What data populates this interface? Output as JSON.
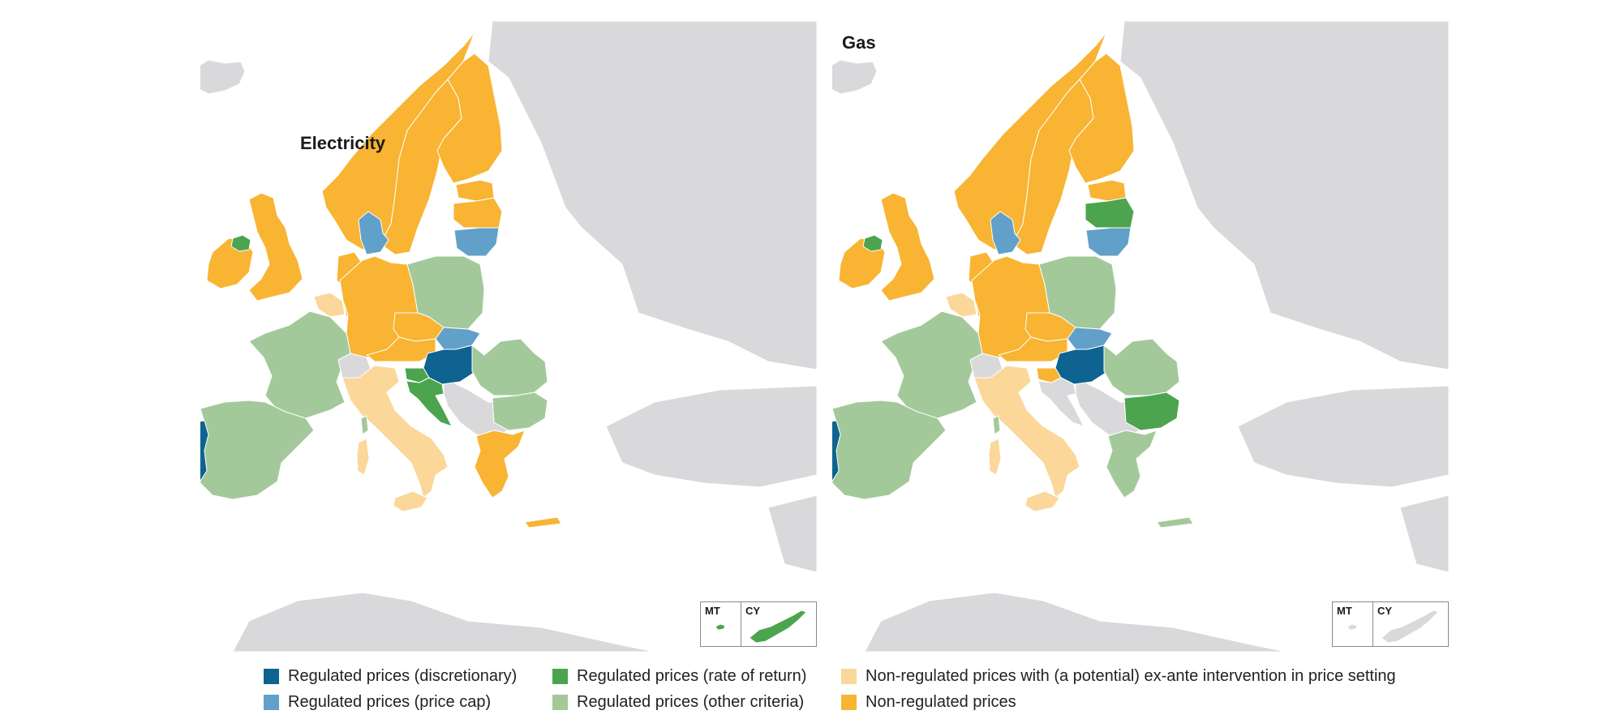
{
  "colors": {
    "sea": "#ffffff",
    "land_other": "#d9d9db",
    "border": "#ffffff",
    "regulated_discretionary": "#0e6390",
    "regulated_price_cap": "#61a0c8",
    "regulated_rate_of_return": "#4ca44f",
    "regulated_other_criteria": "#a3c99a",
    "non_regulated_ex_ante": "#fbd79a",
    "non_regulated": "#f8b432"
  },
  "maps": [
    {
      "id": "electricity",
      "title": "Electricity",
      "countries": {
        "IS": "land_other",
        "NO": "non_regulated",
        "SE": "non_regulated",
        "FI": "non_regulated",
        "EE": "non_regulated",
        "LV": "non_regulated",
        "LT": "regulated_price_cap",
        "IE": "non_regulated",
        "NIR": "regulated_rate_of_return",
        "UK": "non_regulated",
        "DK": "regulated_price_cap",
        "NL": "non_regulated",
        "BE": "non_regulated_ex_ante",
        "LU": "non_regulated",
        "DE": "non_regulated",
        "PL": "regulated_other_criteria",
        "CZ": "non_regulated",
        "SK": "regulated_price_cap",
        "AT": "non_regulated",
        "HU": "regulated_discretionary",
        "SI": "regulated_rate_of_return",
        "HR": "regulated_rate_of_return",
        "RO": "regulated_other_criteria",
        "BG": "regulated_other_criteria",
        "GR": "non_regulated",
        "FR": "regulated_other_criteria",
        "CH": "land_other",
        "IT": "non_regulated_ex_ante",
        "ES": "regulated_other_criteria",
        "PT": "regulated_discretionary",
        "BALKANS": "land_other"
      },
      "insets": {
        "MT": "regulated_rate_of_return",
        "CY": "regulated_rate_of_return"
      }
    },
    {
      "id": "gas",
      "title": "Gas",
      "countries": {
        "IS": "land_other",
        "NO": "non_regulated",
        "SE": "non_regulated",
        "FI": "non_regulated",
        "EE": "non_regulated",
        "LV": "regulated_rate_of_return",
        "LT": "regulated_price_cap",
        "IE": "non_regulated",
        "NIR": "regulated_rate_of_return",
        "UK": "non_regulated",
        "DK": "regulated_price_cap",
        "NL": "non_regulated",
        "BE": "non_regulated_ex_ante",
        "LU": "non_regulated",
        "DE": "non_regulated",
        "PL": "regulated_other_criteria",
        "CZ": "non_regulated",
        "SK": "regulated_price_cap",
        "AT": "non_regulated",
        "HU": "regulated_discretionary",
        "SI": "non_regulated",
        "HR": "land_other",
        "RO": "regulated_other_criteria",
        "BG": "regulated_rate_of_return",
        "GR": "regulated_other_criteria",
        "FR": "regulated_other_criteria",
        "CH": "land_other",
        "IT": "non_regulated_ex_ante",
        "ES": "regulated_other_criteria",
        "PT": "regulated_discretionary",
        "BALKANS": "land_other"
      },
      "insets": {
        "MT": "land_other",
        "CY": "land_other"
      }
    }
  ],
  "insets": {
    "mt_label": "MT",
    "cy_label": "CY"
  },
  "legend": [
    {
      "label": "Regulated prices (discretionary)",
      "color": "regulated_discretionary"
    },
    {
      "label": "Regulated prices (price cap)",
      "color": "regulated_price_cap"
    },
    {
      "label": "Regulated prices (rate of return)",
      "color": "regulated_rate_of_return"
    },
    {
      "label": "Regulated prices (other criteria)",
      "color": "regulated_other_criteria"
    },
    {
      "label": "Non-regulated prices with (a potential) ex-ante intervention in price setting",
      "color": "non_regulated_ex_ante"
    },
    {
      "label": "Non-regulated prices",
      "color": "non_regulated"
    }
  ]
}
